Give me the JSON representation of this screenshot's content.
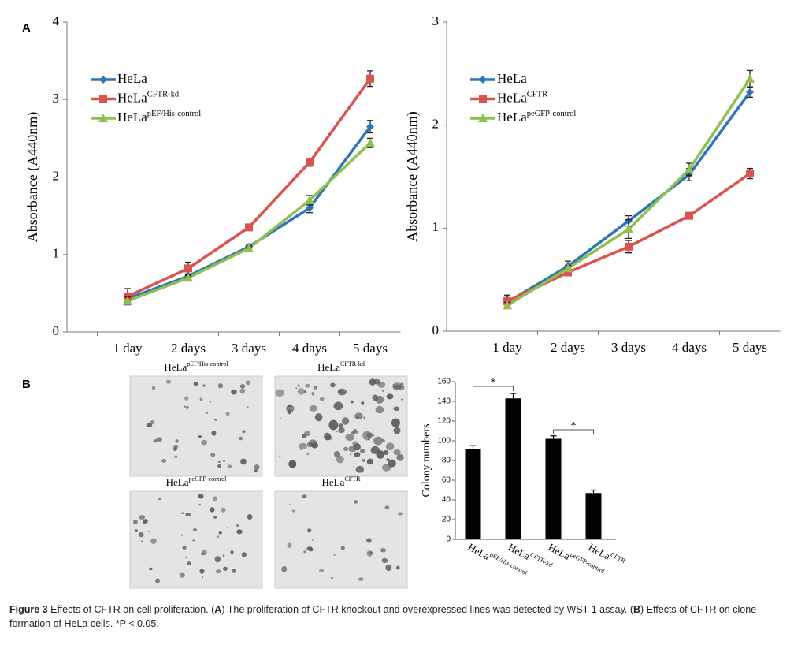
{
  "panel_labels": [
    "A",
    "B"
  ],
  "images": [
    {
      "label": "HeLa",
      "superscript": "pEF/His-control"
    },
    {
      "label": "HeLa",
      "superscript": "CFTR-kd"
    },
    {
      "label": "HeLa",
      "superscript": "peGFP-control"
    },
    {
      "label": "HeLa",
      "superscript": "CFTR"
    }
  ],
  "caption": {
    "label": "Figure 3",
    "parts": [
      "Effects of CFTR on cell proliferation. (",
      "A",
      ") The proliferation of CFTR knockout and overexpressed lines was detected by WST-1 assay. (",
      "B",
      ") Effects of CFTR on clone formation of HeLa cells. *P < 0.05."
    ]
  },
  "chart_data": [
    {
      "type": "line",
      "y_label": "Absorbance (A440nm)",
      "categories": [
        "1 day",
        "2 days",
        "3 days",
        "4 days",
        "5 days"
      ],
      "ylim": [
        0,
        4
      ],
      "yticks": [
        0,
        1,
        2,
        3,
        4
      ],
      "series": [
        {
          "name": "HeLa",
          "superscript": "",
          "color": "#2e75b6",
          "marker": "diamond",
          "values": [
            0.43,
            0.72,
            1.1,
            1.6,
            2.65
          ],
          "errors": [
            0.04,
            0.03,
            0.03,
            0.06,
            0.08
          ]
        },
        {
          "name": "HeLa",
          "superscript": "CFTR-kd",
          "color": "#d9534f",
          "marker": "square",
          "values": [
            0.46,
            0.82,
            1.35,
            2.19,
            3.27
          ],
          "errors": [
            0.1,
            0.08,
            0.03,
            0.05,
            0.1
          ]
        },
        {
          "name": "HeLa",
          "superscript": "pEF/His-control",
          "color": "#8fc04f",
          "marker": "triangle",
          "values": [
            0.4,
            0.7,
            1.08,
            1.7,
            2.44
          ],
          "errors": [
            0.05,
            0.03,
            0.03,
            0.06,
            0.06
          ]
        }
      ]
    },
    {
      "type": "line",
      "y_label": "Absorbance (A440nm)",
      "categories": [
        "1 day",
        "2 days",
        "3 days",
        "4 days",
        "5 days"
      ],
      "ylim": [
        0,
        3
      ],
      "yticks": [
        0,
        1,
        2,
        3
      ],
      "series": [
        {
          "name": "HeLa",
          "superscript": "",
          "color": "#2e75b6",
          "marker": "diamond",
          "values": [
            0.28,
            0.63,
            1.07,
            1.52,
            2.32
          ],
          "errors": [
            0.06,
            0.05,
            0.05,
            0.06,
            0.05
          ]
        },
        {
          "name": "HeLa",
          "superscript": "CFTR",
          "color": "#d9534f",
          "marker": "square",
          "values": [
            0.29,
            0.57,
            0.82,
            1.12,
            1.53
          ],
          "errors": [
            0.06,
            0.03,
            0.06,
            0.03,
            0.05
          ]
        },
        {
          "name": "HeLa",
          "superscript": "peGFP-control",
          "color": "#8fc04f",
          "marker": "triangle",
          "values": [
            0.25,
            0.61,
            0.99,
            1.57,
            2.45
          ],
          "errors": [
            0.03,
            0.03,
            0.09,
            0.06,
            0.08
          ]
        }
      ]
    },
    {
      "type": "bar",
      "y_label": "Colony numbers",
      "categories": [
        "HeLa",
        "HeLa",
        "HeLa",
        "HeLa"
      ],
      "category_superscripts": [
        "pEF/His-control",
        "CFTR-kd",
        "peGFP-control",
        "CFTR"
      ],
      "values": [
        92,
        143,
        102,
        47
      ],
      "errors": [
        3,
        5,
        3,
        3
      ],
      "color": "#000000",
      "ylim": [
        0,
        160
      ],
      "yticks": [
        0,
        20,
        40,
        60,
        80,
        100,
        120,
        140,
        160
      ],
      "annotations": [
        "*",
        "*"
      ]
    }
  ]
}
